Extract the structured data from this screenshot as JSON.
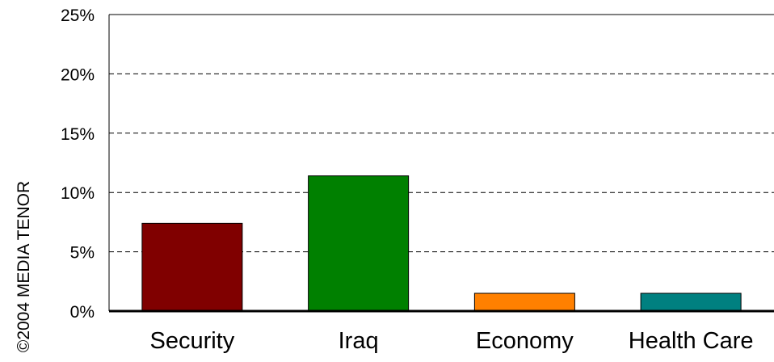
{
  "watermark": "©2004 MEDIA TENOR",
  "chart_data": {
    "type": "bar",
    "categories": [
      "Security",
      "Iraq",
      "Economy",
      "Health Care"
    ],
    "values": [
      7.4,
      11.4,
      1.5,
      1.5
    ],
    "colors": [
      "#800000",
      "#008000",
      "#FF8000",
      "#008080"
    ],
    "yticks": [
      "0%",
      "5%",
      "10%",
      "15%",
      "20%",
      "25%"
    ],
    "ylim": [
      0,
      25
    ],
    "grid": true,
    "grid_style": "dashed"
  }
}
